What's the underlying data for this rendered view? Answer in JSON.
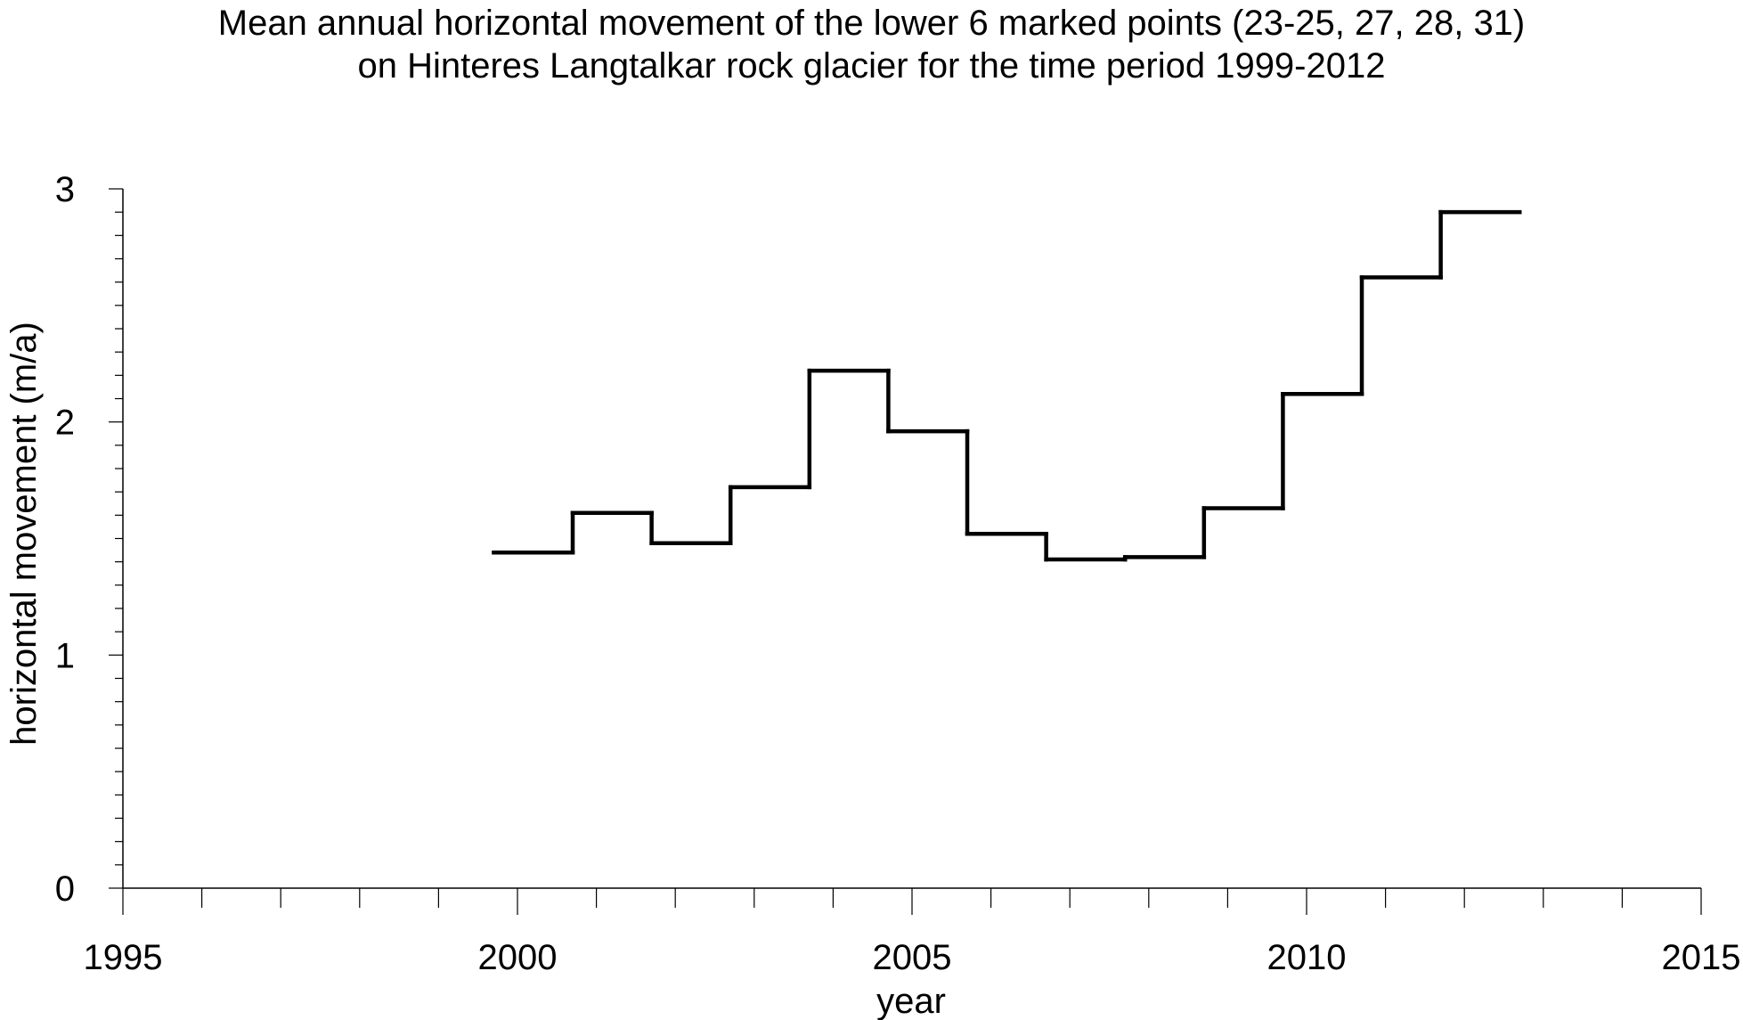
{
  "chart_data": {
    "type": "line",
    "style": "step",
    "title": [
      "Mean annual horizontal movement of the lower 6 marked points (23-25, 27, 28, 31)",
      "on Hinteres Langtalkar rock glacier for the time period 1999-2012"
    ],
    "xlabel": "year",
    "ylabel": "horizontal movement (m/a)",
    "xlim": [
      1995,
      2015
    ],
    "ylim": [
      0,
      3
    ],
    "x_ticks": [
      "1995",
      "2000",
      "2005",
      "2010",
      "2015"
    ],
    "y_ticks": [
      "0",
      "1",
      "2",
      "3"
    ],
    "x_minor_step": 1,
    "y_minor_step": 0.1,
    "grid": false,
    "line_color": "#000000",
    "series": [
      {
        "segments": [
          {
            "x_start": 1999.7,
            "x_end": 2000.7,
            "value": 1.44
          },
          {
            "x_start": 2000.7,
            "x_end": 2001.7,
            "value": 1.61
          },
          {
            "x_start": 2001.7,
            "x_end": 2002.7,
            "value": 1.48
          },
          {
            "x_start": 2002.7,
            "x_end": 2003.7,
            "value": 1.72
          },
          {
            "x_start": 2003.7,
            "x_end": 2004.7,
            "value": 2.22
          },
          {
            "x_start": 2004.7,
            "x_end": 2005.7,
            "value": 1.96
          },
          {
            "x_start": 2005.7,
            "x_end": 2006.7,
            "value": 1.52
          },
          {
            "x_start": 2006.7,
            "x_end": 2007.7,
            "value": 1.41
          },
          {
            "x_start": 2007.7,
            "x_end": 2008.7,
            "value": 1.42
          },
          {
            "x_start": 2008.7,
            "x_end": 2009.7,
            "value": 1.63
          },
          {
            "x_start": 2009.7,
            "x_end": 2010.7,
            "value": 2.12
          },
          {
            "x_start": 2010.7,
            "x_end": 2011.7,
            "value": 2.62
          },
          {
            "x_start": 2011.7,
            "x_end": 2012.7,
            "value": 2.9
          }
        ]
      }
    ]
  }
}
